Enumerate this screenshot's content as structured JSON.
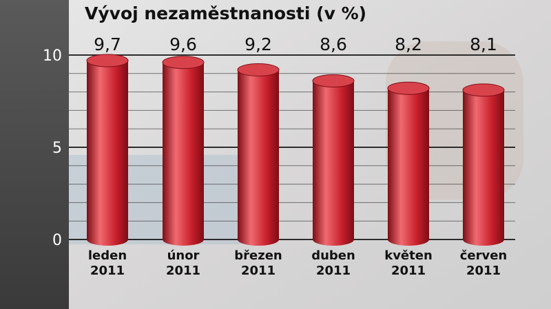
{
  "chart_data": {
    "type": "bar",
    "title": "Vývoj nezaměstnanosti (v %)",
    "categories": [
      [
        "leden",
        "2011"
      ],
      [
        "únor",
        "2011"
      ],
      [
        "březen",
        "2011"
      ],
      [
        "duben",
        "2011"
      ],
      [
        "květen",
        "2011"
      ],
      [
        "červen",
        "2011"
      ]
    ],
    "series": [
      {
        "values": [
          9.7,
          9.6,
          9.2,
          8.6,
          8.2,
          8.1
        ]
      }
    ],
    "value_labels": [
      "9,7",
      "9,6",
      "9,2",
      "8,6",
      "8,2",
      "8,1"
    ],
    "yticks": [
      0,
      5,
      10
    ],
    "ytick_labels": [
      "0",
      "5",
      "10"
    ],
    "ylim": [
      0,
      10
    ],
    "xlabel": "",
    "ylabel": "",
    "grid": true,
    "colors": {
      "bar": "#c8202c",
      "bar_highlight": "#f06a70",
      "bar_shadow": "#7e0d16",
      "bar_top": "#d8434b",
      "grid": "#1a1a1a",
      "text": "#111111",
      "axis_text": "#ffffff",
      "left_panel": "#4a4a4a",
      "background": "#dcdcdc"
    }
  }
}
